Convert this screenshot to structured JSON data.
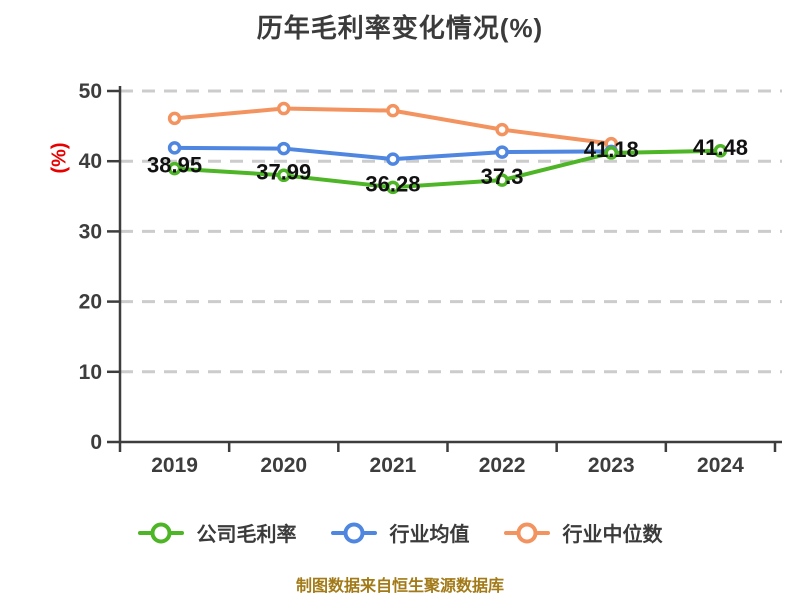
{
  "title": "历年毛利率变化情况(%)",
  "y_axis_unit": "(%)",
  "footer": "制图数据来自恒生聚源数据库",
  "legend": [
    {
      "key": "company-margin",
      "label": "公司毛利率",
      "color": "#4db526"
    },
    {
      "key": "industry-mean",
      "label": "行业均值",
      "color": "#4f86e0"
    },
    {
      "key": "industry-median",
      "label": "行业中位数",
      "color": "#f3935f"
    }
  ],
  "chart_data": {
    "type": "line",
    "title": "历年毛利率变化情况(%)",
    "categories": [
      "2019",
      "2020",
      "2021",
      "2022",
      "2023",
      "2024"
    ],
    "series": [
      {
        "key": "industry-median",
        "name": "行业中位数",
        "color": "#f3935f",
        "values": [
          46.1,
          47.5,
          47.2,
          44.5,
          42.5,
          null
        ]
      },
      {
        "key": "industry-mean",
        "name": "行业均值",
        "color": "#4f86e0",
        "values": [
          41.9,
          41.8,
          40.3,
          41.3,
          41.4,
          null
        ]
      },
      {
        "key": "company-margin",
        "name": "公司毛利率",
        "color": "#4db526",
        "values": [
          38.95,
          37.99,
          36.28,
          37.3,
          41.18,
          41.48
        ],
        "data_labels": [
          "38.95",
          "37.99",
          "36.28",
          "37.3",
          "41.18",
          "41.48"
        ]
      }
    ],
    "ylabel": "(%)",
    "ylim": [
      0,
      50
    ],
    "yticks": [
      0,
      10,
      20,
      30,
      40,
      50
    ],
    "grid": "horizontal-dashed",
    "legend_position": "bottom",
    "marker": "circle-white-fill"
  },
  "colors": {
    "title": "#3b3b3b",
    "axis": "#3d3d3d",
    "grid": "#cccccc",
    "data_label": "#111111",
    "footer": "#a27a18",
    "y_unit": "#e80000",
    "background": "#ffffff"
  }
}
